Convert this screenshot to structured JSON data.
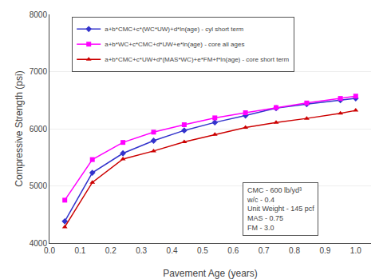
{
  "chart_data": {
    "type": "line",
    "xlabel": "Pavement Age (years)",
    "ylabel": "Compressive Strength (psi)",
    "x": [
      0.05,
      0.14,
      0.24,
      0.34,
      0.44,
      0.54,
      0.64,
      0.74,
      0.84,
      0.95,
      1.0
    ],
    "series": [
      {
        "name": "a+b*CMC+c*(WC*UW)+d*ln(age) - cyl short term",
        "color": "#3333CC",
        "marker": "diamond",
        "values": [
          4380,
          5230,
          5570,
          5790,
          5970,
          6110,
          6230,
          6360,
          6430,
          6500,
          6530
        ]
      },
      {
        "name": "a+b*WC+c*CMC+d*UW+e*ln(age) - core all ages",
        "color": "#FF00FF",
        "marker": "square",
        "values": [
          4750,
          5460,
          5760,
          5940,
          6070,
          6190,
          6280,
          6370,
          6450,
          6530,
          6570
        ]
      },
      {
        "name": "a+b*CMC+c*UW+d*(MAS*WC)+e*FM+f*ln(age) - core short term",
        "color": "#CC0000",
        "marker": "triangle-up",
        "values": [
          4280,
          5060,
          5470,
          5610,
          5770,
          5900,
          6020,
          6110,
          6180,
          6270,
          6320
        ]
      }
    ],
    "xlim": [
      0,
      1.05
    ],
    "ylim": [
      4000,
      8000
    ],
    "xticks": [
      {
        "value": 0,
        "label": "0.0"
      },
      0.1,
      0.2,
      0.3,
      0.4,
      0.5,
      0.6,
      0.7,
      0.8,
      0.9,
      {
        "value": 1,
        "label": "1.0"
      }
    ],
    "yticks": [
      4000,
      5000,
      6000,
      7000,
      8000
    ],
    "grid": true,
    "legend": "upper left",
    "annotations": [
      "CMC - 600 lb/yd³",
      "w/c - 0.4",
      "Unit Weight - 145 pcf",
      "MAS - 0.75",
      "FM - 3.0"
    ]
  }
}
